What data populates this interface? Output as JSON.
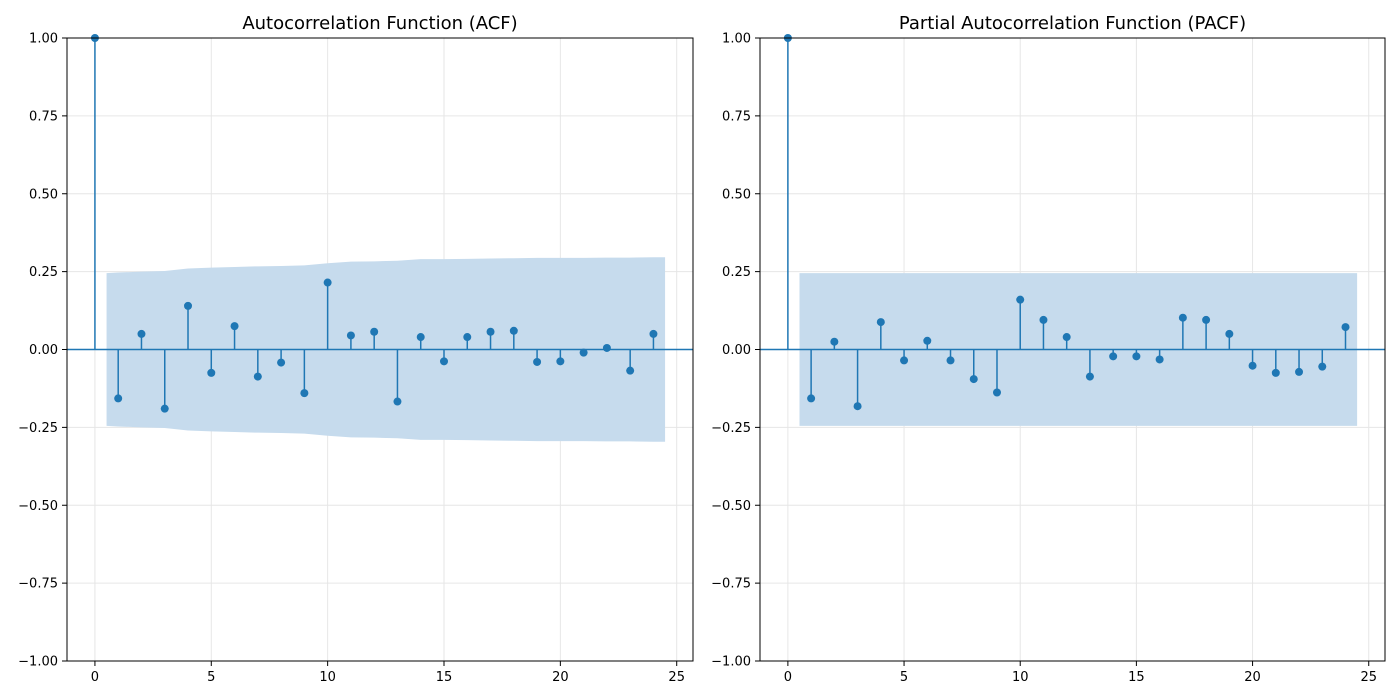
{
  "colors": {
    "stem": "#1f77b4",
    "band": "#c6dbed",
    "grid": "#e6e6e6",
    "axis": "#000000"
  },
  "chart_data": [
    {
      "type": "stem",
      "title": "Autocorrelation Function (ACF)",
      "xlabel": "",
      "ylabel": "",
      "xlim": [
        -1.2,
        25.7
      ],
      "ylim": [
        -1.0,
        1.0
      ],
      "xticks": [
        0,
        5,
        10,
        15,
        20,
        25
      ],
      "yticks": [
        -1.0,
        -0.75,
        -0.5,
        -0.25,
        0.0,
        0.25,
        0.5,
        0.75,
        1.0
      ],
      "yticklabels": [
        "−1.00",
        "−0.75",
        "−0.50",
        "−0.25",
        "0.00",
        "0.25",
        "0.50",
        "0.75",
        "1.00"
      ],
      "grid": true,
      "lags": [
        0,
        1,
        2,
        3,
        4,
        5,
        6,
        7,
        8,
        9,
        10,
        11,
        12,
        13,
        14,
        15,
        16,
        17,
        18,
        19,
        20,
        21,
        22,
        23,
        24
      ],
      "values": [
        1.0,
        -0.157,
        0.05,
        -0.19,
        0.14,
        -0.075,
        0.075,
        -0.087,
        -0.042,
        -0.14,
        0.215,
        0.045,
        0.057,
        -0.167,
        0.04,
        -0.038,
        0.04,
        0.057,
        0.06,
        -0.04,
        -0.038,
        -0.01,
        0.005,
        -0.068,
        0.05
      ],
      "confidence_band": {
        "lags": [
          0.5,
          1,
          2,
          3,
          4,
          5,
          6,
          7,
          8,
          9,
          10,
          11,
          12,
          13,
          14,
          15,
          16,
          17,
          18,
          19,
          20,
          21,
          22,
          23,
          24,
          24.5
        ],
        "upper": [
          0.245,
          0.247,
          0.25,
          0.252,
          0.26,
          0.263,
          0.265,
          0.267,
          0.268,
          0.27,
          0.277,
          0.282,
          0.283,
          0.285,
          0.29,
          0.29,
          0.291,
          0.292,
          0.293,
          0.294,
          0.294,
          0.294,
          0.295,
          0.295,
          0.296,
          0.296
        ]
      }
    },
    {
      "type": "stem",
      "title": "Partial Autocorrelation Function (PACF)",
      "xlabel": "",
      "ylabel": "",
      "xlim": [
        -1.2,
        25.7
      ],
      "ylim": [
        -1.0,
        1.0
      ],
      "xticks": [
        0,
        5,
        10,
        15,
        20,
        25
      ],
      "yticks": [
        -1.0,
        -0.75,
        -0.5,
        -0.25,
        0.0,
        0.25,
        0.5,
        0.75,
        1.0
      ],
      "yticklabels": [
        "−1.00",
        "−0.75",
        "−0.50",
        "−0.25",
        "0.00",
        "0.25",
        "0.50",
        "0.75",
        "1.00"
      ],
      "grid": true,
      "lags": [
        0,
        1,
        2,
        3,
        4,
        5,
        6,
        7,
        8,
        9,
        10,
        11,
        12,
        13,
        14,
        15,
        16,
        17,
        18,
        19,
        20,
        21,
        22,
        23,
        24
      ],
      "values": [
        1.0,
        -0.157,
        0.025,
        -0.182,
        0.088,
        -0.035,
        0.028,
        -0.035,
        -0.095,
        -0.138,
        0.16,
        0.095,
        0.04,
        -0.087,
        -0.022,
        -0.022,
        -0.032,
        0.102,
        0.095,
        0.05,
        -0.052,
        -0.075,
        -0.072,
        -0.055,
        0.072
      ],
      "confidence_band": {
        "lags": [
          0.5,
          24.5
        ],
        "upper": [
          0.245,
          0.245
        ]
      }
    }
  ]
}
